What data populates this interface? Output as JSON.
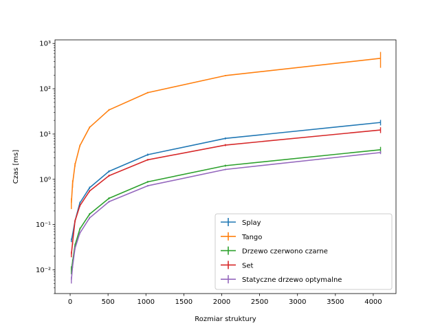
{
  "chart_data": {
    "type": "line",
    "xlabel": "Rozmiar struktury",
    "ylabel": "Czas [ms]",
    "xlim": [
      -200,
      4300
    ],
    "ylim": [
      0.003,
      1200
    ],
    "yscale": "log",
    "grid": false,
    "legend_position": "bottom-right",
    "x_ticks": [
      0,
      500,
      1000,
      1500,
      2000,
      2500,
      3000,
      3500,
      4000
    ],
    "y_ticks": [
      0.01,
      0.1,
      1,
      10,
      100,
      1000
    ],
    "y_tick_labels": [
      "10⁻²",
      "10⁻¹",
      "10⁰",
      "10¹",
      "10²",
      "10³"
    ],
    "x": [
      16,
      32,
      64,
      128,
      256,
      512,
      1024,
      2048,
      4096
    ],
    "series": [
      {
        "name": "Splay",
        "color": "#1f77b4",
        "values": [
          0.045,
          0.06,
          0.12,
          0.3,
          0.65,
          1.5,
          3.5,
          8,
          18
        ],
        "errors": [
          0.004,
          0.004,
          0.008,
          0.02,
          0.04,
          0.08,
          0.2,
          0.4,
          2.5
        ]
      },
      {
        "name": "Tango",
        "color": "#ff7f0e",
        "values": [
          0.3,
          0.8,
          2.1,
          5.5,
          14,
          34,
          82,
          195,
          470
        ],
        "errors": [
          0.08,
          0.15,
          0.2,
          0.3,
          0.7,
          1.5,
          3,
          6,
          180
        ]
      },
      {
        "name": "Drzewo czerwono czarne",
        "color": "#2ca02c",
        "values": [
          0.01,
          0.015,
          0.035,
          0.08,
          0.17,
          0.38,
          0.88,
          2.0,
          4.5
        ],
        "errors": [
          0.002,
          0.002,
          0.003,
          0.005,
          0.01,
          0.02,
          0.04,
          0.1,
          0.7
        ]
      },
      {
        "name": "Set",
        "color": "#d62728",
        "values": [
          0.022,
          0.04,
          0.12,
          0.26,
          0.55,
          1.2,
          2.7,
          5.7,
          12.3
        ],
        "errors": [
          0.003,
          0.004,
          0.008,
          0.015,
          0.03,
          0.06,
          0.12,
          0.3,
          1.8
        ]
      },
      {
        "name": "Statyczne drzewo optymalne",
        "color": "#9467bd",
        "values": [
          0.006,
          0.012,
          0.03,
          0.065,
          0.14,
          0.32,
          0.72,
          1.65,
          3.9
        ],
        "errors": [
          0.001,
          0.001,
          0.002,
          0.004,
          0.008,
          0.015,
          0.03,
          0.06,
          0.3
        ]
      }
    ]
  }
}
